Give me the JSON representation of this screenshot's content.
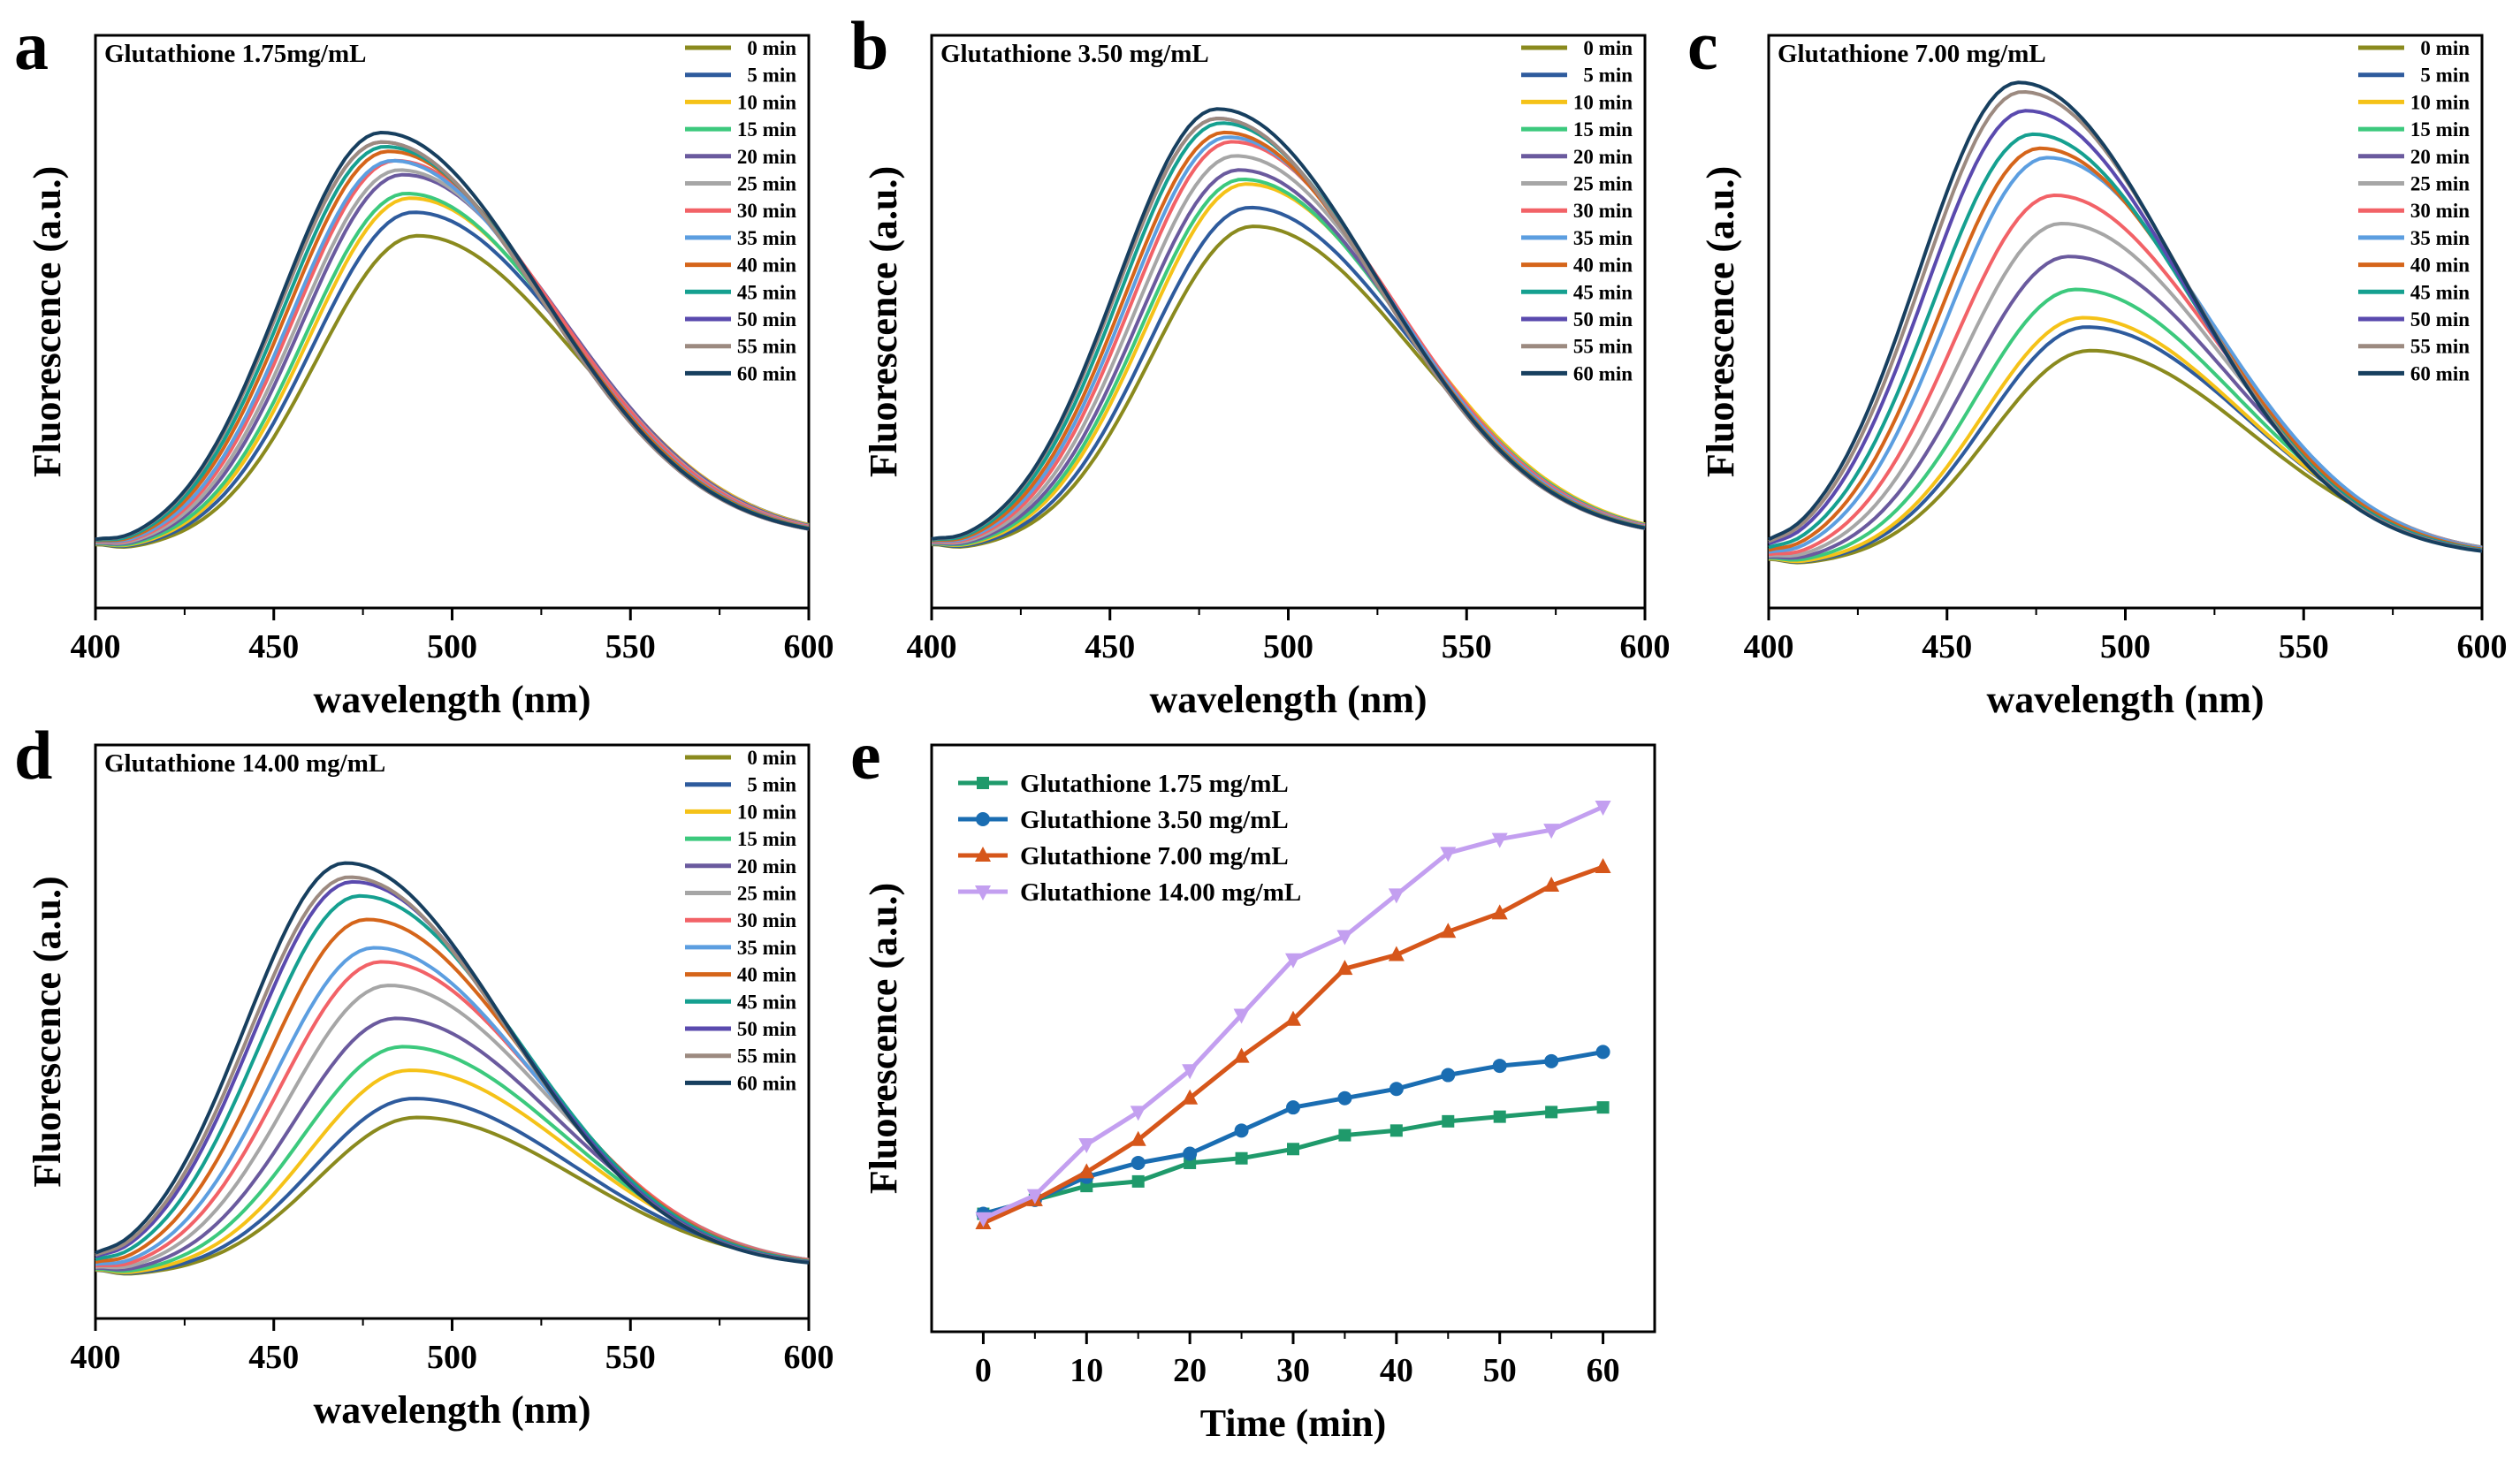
{
  "figure": {
    "curve_colors": [
      "#8a8a1e",
      "#2e5b9d",
      "#f5c218",
      "#3cc97d",
      "#6a5a9e",
      "#a6a6a6",
      "#f26267",
      "#5c9ee0",
      "#d5651a",
      "#15a090",
      "#5a4aae",
      "#9c8a80",
      "#173f5f"
    ],
    "trend_colors": [
      "#1f9a6b",
      "#1a6db2",
      "#d6561a",
      "#c39ff0"
    ]
  },
  "chart_data": [
    {
      "type": "line",
      "panel": "a",
      "title": "Glutathione 1.75mg/mL",
      "xlabel": "wavelength (nm)",
      "ylabel": "Fluorescence (a.u.)",
      "xlim": [
        400,
        600
      ],
      "ylim": [
        0,
        1
      ],
      "xticks": [
        "400",
        "450",
        "500",
        "550",
        "600"
      ],
      "baseline": 0.1,
      "tail": 0.13,
      "peak_nm": [
        490,
        489,
        488,
        487,
        486,
        485,
        484,
        483,
        482,
        481,
        480,
        480,
        480
      ],
      "series": [
        {
          "name": "0 min",
          "peak": 0.76
        },
        {
          "name": "5 min",
          "peak": 0.81
        },
        {
          "name": "10 min",
          "peak": 0.84
        },
        {
          "name": "15 min",
          "peak": 0.85
        },
        {
          "name": "20 min",
          "peak": 0.89
        },
        {
          "name": "25 min",
          "peak": 0.9
        },
        {
          "name": "30 min",
          "peak": 0.92
        },
        {
          "name": "35 min",
          "peak": 0.92
        },
        {
          "name": "40 min",
          "peak": 0.94
        },
        {
          "name": "45 min",
          "peak": 0.95
        },
        {
          "name": "50 min",
          "peak": 0.96
        },
        {
          "name": "55 min",
          "peak": 0.96
        },
        {
          "name": "60 min",
          "peak": 0.98
        }
      ]
    },
    {
      "type": "line",
      "panel": "b",
      "title": "Glutathione 3.50 mg/mL",
      "xlabel": "wavelength (nm)",
      "ylabel": "Fluorescence (a.u.)",
      "xlim": [
        400,
        600
      ],
      "ylim": [
        0,
        1
      ],
      "xticks": [
        "400",
        "450",
        "500",
        "550",
        "600"
      ],
      "baseline": 0.1,
      "tail": 0.13,
      "peak_nm": [
        490,
        489,
        488,
        487,
        486,
        485,
        484,
        483,
        482,
        481,
        480,
        480,
        480
      ],
      "series": [
        {
          "name": "0 min",
          "peak": 0.78
        },
        {
          "name": "5 min",
          "peak": 0.82
        },
        {
          "name": "10 min",
          "peak": 0.87
        },
        {
          "name": "15 min",
          "peak": 0.88
        },
        {
          "name": "20 min",
          "peak": 0.9
        },
        {
          "name": "25 min",
          "peak": 0.93
        },
        {
          "name": "30 min",
          "peak": 0.96
        },
        {
          "name": "35 min",
          "peak": 0.97
        },
        {
          "name": "40 min",
          "peak": 0.98
        },
        {
          "name": "45 min",
          "peak": 1.0
        },
        {
          "name": "50 min",
          "peak": 1.01
        },
        {
          "name": "55 min",
          "peak": 1.01
        },
        {
          "name": "60 min",
          "peak": 1.03
        }
      ]
    },
    {
      "type": "line",
      "panel": "c",
      "title": "Glutathione 7.00 mg/mL",
      "xlabel": "wavelength (nm)",
      "ylabel": "Fluorescence (a.u.)",
      "xlim": [
        400,
        600
      ],
      "ylim": [
        0,
        1
      ],
      "xticks": [
        "400",
        "450",
        "500",
        "550",
        "600"
      ],
      "baseline": 0.07,
      "tail": 0.09,
      "peak_nm": [
        490,
        489,
        488,
        486,
        484,
        482,
        480,
        478,
        476,
        474,
        472,
        471,
        470
      ],
      "series": [
        {
          "name": "0 min",
          "peak": 0.52
        },
        {
          "name": "5 min",
          "peak": 0.57
        },
        {
          "name": "10 min",
          "peak": 0.59
        },
        {
          "name": "15 min",
          "peak": 0.65
        },
        {
          "name": "20 min",
          "peak": 0.72
        },
        {
          "name": "25 min",
          "peak": 0.79
        },
        {
          "name": "30 min",
          "peak": 0.85
        },
        {
          "name": "35 min",
          "peak": 0.93
        },
        {
          "name": "40 min",
          "peak": 0.95
        },
        {
          "name": "45 min",
          "peak": 0.98
        },
        {
          "name": "50 min",
          "peak": 1.03
        },
        {
          "name": "55 min",
          "peak": 1.07
        },
        {
          "name": "60 min",
          "peak": 1.09
        }
      ]
    },
    {
      "type": "line",
      "panel": "d",
      "title": "Glutathione 14.00 mg/mL",
      "xlabel": "wavelength (nm)",
      "ylabel": "Fluorescence (a.u.)",
      "xlim": [
        400,
        600
      ],
      "ylim": [
        0,
        1
      ],
      "xticks": [
        "400",
        "450",
        "500",
        "550",
        "600"
      ],
      "baseline": 0.07,
      "tail": 0.09,
      "peak_nm": [
        490,
        489,
        488,
        486,
        484,
        482,
        480,
        478,
        476,
        474,
        472,
        471,
        470
      ],
      "series": [
        {
          "name": "0 min",
          "peak": 0.4
        },
        {
          "name": "5 min",
          "peak": 0.44
        },
        {
          "name": "10 min",
          "peak": 0.5
        },
        {
          "name": "15 min",
          "peak": 0.55
        },
        {
          "name": "20 min",
          "peak": 0.61
        },
        {
          "name": "25 min",
          "peak": 0.68
        },
        {
          "name": "30 min",
          "peak": 0.73
        },
        {
          "name": "35 min",
          "peak": 0.76
        },
        {
          "name": "40 min",
          "peak": 0.82
        },
        {
          "name": "45 min",
          "peak": 0.87
        },
        {
          "name": "50 min",
          "peak": 0.9
        },
        {
          "name": "55 min",
          "peak": 0.91
        },
        {
          "name": "60 min",
          "peak": 0.94
        }
      ]
    },
    {
      "type": "line",
      "panel": "e",
      "title": "",
      "xlabel": "Time (min)",
      "ylabel": "Fluorescence (a.u.)",
      "xlim": [
        -5,
        65
      ],
      "ylim": [
        0,
        1
      ],
      "xticks": [
        "0",
        "10",
        "20",
        "30",
        "40",
        "50",
        "60"
      ],
      "x": [
        0,
        5,
        10,
        15,
        20,
        25,
        30,
        35,
        40,
        45,
        50,
        55,
        60
      ],
      "series": [
        {
          "name": "Glutathione 1.75 mg/mL",
          "marker": "square",
          "values": [
            0.17,
            0.2,
            0.23,
            0.24,
            0.28,
            0.29,
            0.31,
            0.34,
            0.35,
            0.37,
            0.38,
            0.39,
            0.4
          ]
        },
        {
          "name": "Glutathione 3.50 mg/mL",
          "marker": "circle",
          "values": [
            0.17,
            0.2,
            0.25,
            0.28,
            0.3,
            0.35,
            0.4,
            0.42,
            0.44,
            0.47,
            0.49,
            0.5,
            0.52
          ]
        },
        {
          "name": "Glutathione 7.00 mg/mL",
          "marker": "triangle-up",
          "values": [
            0.15,
            0.2,
            0.26,
            0.33,
            0.42,
            0.51,
            0.59,
            0.7,
            0.73,
            0.78,
            0.82,
            0.88,
            0.92
          ]
        },
        {
          "name": "Glutathione 14.00 mg/mL",
          "marker": "triangle-down",
          "values": [
            0.16,
            0.21,
            0.32,
            0.39,
            0.48,
            0.6,
            0.72,
            0.77,
            0.86,
            0.95,
            0.98,
            1.0,
            1.05
          ]
        }
      ]
    }
  ]
}
